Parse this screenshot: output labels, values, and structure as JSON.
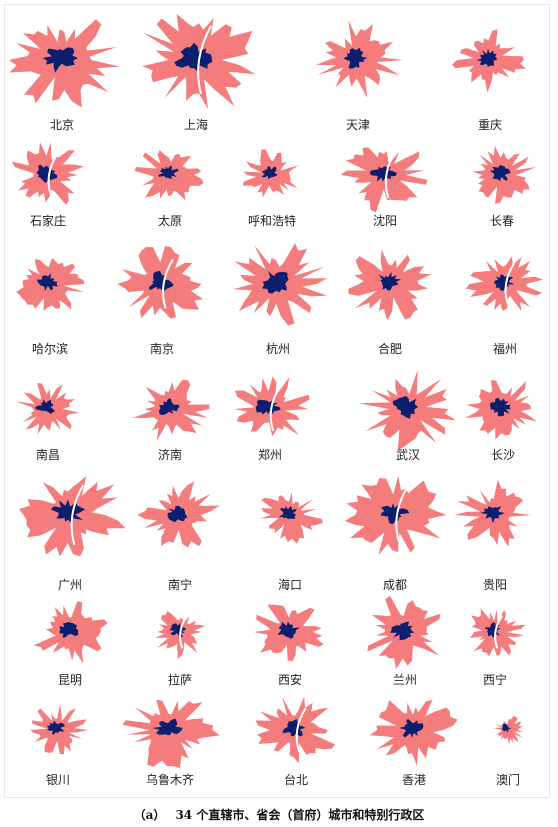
{
  "colors": {
    "urban_extent": "#F47C7C",
    "urban_core": "#0B1F6E",
    "river": "#ffffff"
  },
  "cities": [
    "北京",
    "上海",
    "天津",
    "重庆",
    "石家庄",
    "太原",
    "呼和浩特",
    "沈阳",
    "长春",
    "哈尔滨",
    "南京",
    "杭州",
    "合肥",
    "福州",
    "南昌",
    "济南",
    "郑州",
    "武汉",
    "长沙",
    "广州",
    "南宁",
    "海口",
    "成都",
    "贵阳",
    "昆明",
    "拉萨",
    "西安",
    "兰州",
    "西宁",
    "银川",
    "乌鲁木齐",
    "台北",
    "香港",
    "澳门"
  ],
  "caption": {
    "label": "（a）",
    "text": "34 个直辖市、省会（首府）城市和特别行政区"
  }
}
